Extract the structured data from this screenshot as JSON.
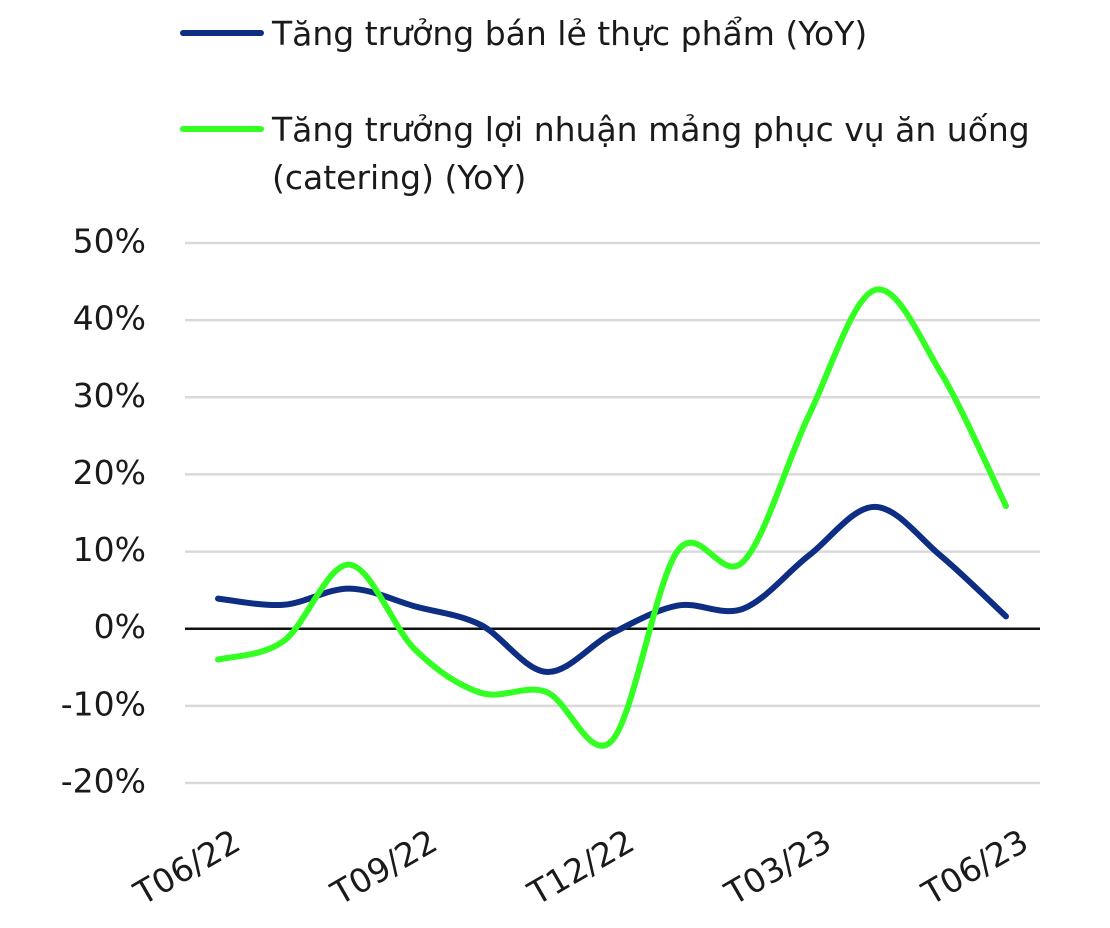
{
  "chart_data": {
    "type": "line",
    "categories": [
      "T06/22",
      null,
      null,
      "T09/22",
      null,
      null,
      "T12/22",
      null,
      null,
      "T03/23",
      null,
      null,
      "T06/23"
    ],
    "series": [
      {
        "name": "Tăng trưởng bán lẻ thực phẩm (YoY)",
        "color": "#0d2e82",
        "values": [
          3.9,
          3.1,
          5.2,
          2.9,
          0.5,
          -5.6,
          -0.6,
          3.0,
          2.6,
          9.5,
          15.8,
          9.5,
          1.6
        ]
      },
      {
        "name": "Tăng trưởng lợi nhuận mảng phục vụ ăn uống (catering) (YoY)",
        "color": "#33ff22",
        "values": [
          -4.0,
          -1.6,
          8.3,
          -2.7,
          -8.3,
          -8.2,
          -14.5,
          10.1,
          8.7,
          27.7,
          43.9,
          33.3,
          15.9
        ]
      }
    ],
    "ylim": [
      -20,
      50
    ],
    "yticks": [
      {
        "value": -20,
        "label": "-20%"
      },
      {
        "value": -10,
        "label": "-10%"
      },
      {
        "value": 0,
        "label": "0%"
      },
      {
        "value": 10,
        "label": "10%"
      },
      {
        "value": 20,
        "label": "20%"
      },
      {
        "value": 30,
        "label": "30%"
      },
      {
        "value": 40,
        "label": "40%"
      },
      {
        "value": 50,
        "label": "50%"
      }
    ],
    "grid": true
  }
}
